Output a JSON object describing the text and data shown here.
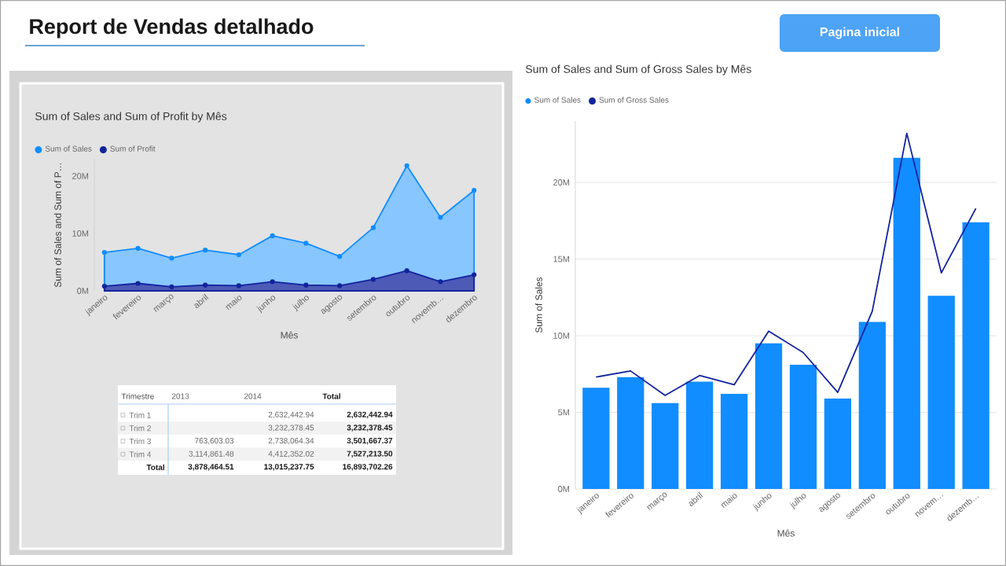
{
  "chart_data": [
    {
      "type": "other",
      "title": "Report de Vendas detalhado",
      "annotations": [
        "Pagina inicial"
      ]
    },
    {
      "type": "area",
      "title": "Sum of Sales and Sum of Profit by Mês",
      "xlabel": "Mês",
      "ylabel": "Sum of Sales and Sum of P…",
      "legend": "top left",
      "marker": "circle",
      "ylim": [
        0,
        23
      ],
      "categories": [
        "janeiro",
        "fevereiro",
        "março",
        "abril",
        "maio",
        "junho",
        "julho",
        "agosto",
        "setembro",
        "outubro",
        "novemb…",
        "dezembro"
      ],
      "yticks": [
        {
          "value": 0,
          "label": "0M"
        },
        {
          "value": 10,
          "label": "10M"
        },
        {
          "value": 20,
          "label": "20M"
        }
      ],
      "series": [
        {
          "name": "Sum of Sales",
          "color": "#118dff",
          "values": [
            6.7,
            7.4,
            5.7,
            7.1,
            6.3,
            9.6,
            8.3,
            6.0,
            11.0,
            21.8,
            12.8,
            17.5
          ]
        },
        {
          "name": "Sum of Profit",
          "color": "#12239e",
          "values": [
            0.8,
            1.3,
            0.7,
            1.0,
            0.9,
            1.6,
            1.0,
            0.9,
            2.0,
            3.5,
            1.6,
            2.8
          ]
        }
      ]
    },
    {
      "type": "other",
      "ylabel": "Trimestre",
      "categories": [
        "2013",
        "2014",
        "Total"
      ],
      "y_categories": [
        "Trim 1",
        "Trim 2",
        "Trim 3",
        "Trim 4",
        "Total"
      ],
      "cell_labels": [
        [
          null,
          "2,632,442.94",
          "2,632,442.94"
        ],
        [
          null,
          "3,232,378.45",
          "3,232,378.45"
        ],
        [
          "763,603.03",
          "2,738,064.34",
          "3,501,667.37"
        ],
        [
          "3,114,861.48",
          "4,412,352.02",
          "7,527,213.50"
        ],
        [
          "3,878,464.51",
          "13,015,237.75",
          "16,893,702.26"
        ]
      ]
    },
    {
      "type": "bar",
      "title": "Sum of Sales and Sum of Gross Sales by Mês",
      "xlabel": "Mês",
      "ylabel": "Sum of Sales",
      "legend": "top left",
      "grid": "y",
      "ylim": [
        0,
        24
      ],
      "categories": [
        "janeiro",
        "fevereiro",
        "março",
        "abril",
        "maio",
        "junho",
        "julho",
        "agosto",
        "setembro",
        "outubro",
        "novem…",
        "dezemb…"
      ],
      "yticks": [
        {
          "value": 0,
          "label": "0M"
        },
        {
          "value": 5,
          "label": "5M"
        },
        {
          "value": 10,
          "label": "10M"
        },
        {
          "value": 15,
          "label": "15M"
        },
        {
          "value": 20,
          "label": "20M"
        }
      ],
      "series": [
        {
          "name": "Sum of Sales",
          "type": "bar",
          "color": "#118dff",
          "values": [
            6.6,
            7.3,
            5.6,
            7.0,
            6.2,
            9.5,
            8.1,
            5.9,
            10.9,
            21.6,
            12.6,
            17.4
          ]
        },
        {
          "name": "Sum of Gross Sales",
          "type": "line",
          "color": "#12239e",
          "values": [
            7.3,
            7.7,
            6.1,
            7.4,
            6.8,
            10.3,
            8.9,
            6.3,
            11.6,
            23.2,
            14.1,
            18.3
          ]
        }
      ]
    }
  ]
}
